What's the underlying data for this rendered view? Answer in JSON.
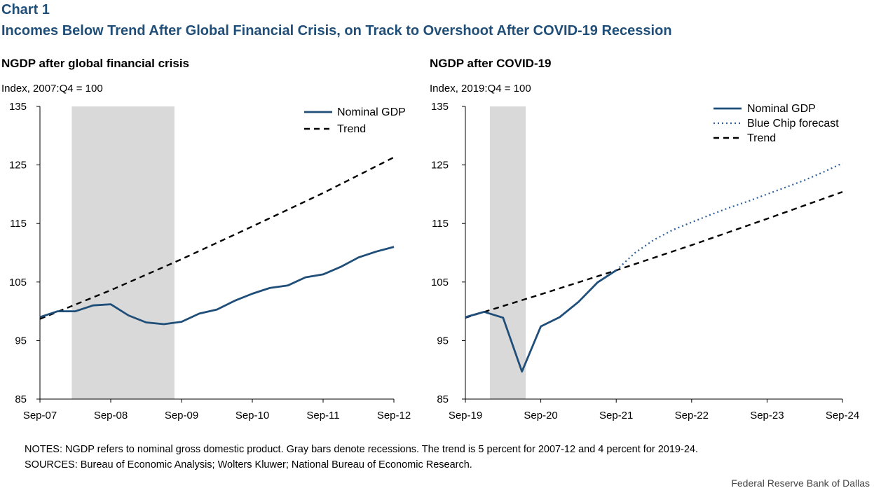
{
  "header": {
    "label": "Chart 1",
    "title": "Incomes Below Trend After Global Financial Crisis, on Track to Overshoot After COVID-19 Recession"
  },
  "colors": {
    "series": "#1f4e79",
    "forecast": "#2e5f9a",
    "trend": "#000000",
    "recession": "#d9d9d9"
  },
  "chart_data": [
    {
      "type": "line",
      "title": "NGDP after global financial crisis",
      "ylabel": "Index, 2007:Q4 = 100",
      "ylim": [
        85,
        135
      ],
      "yticks": [
        85,
        95,
        105,
        115,
        125,
        135
      ],
      "xlim": [
        0,
        20
      ],
      "xticks": [
        {
          "q": 0,
          "label": "Sep-07"
        },
        {
          "q": 4,
          "label": "Sep-08"
        },
        {
          "q": 8,
          "label": "Sep-09"
        },
        {
          "q": 12,
          "label": "Sep-10"
        },
        {
          "q": 16,
          "label": "Sep-11"
        },
        {
          "q": 20,
          "label": "Sep-12"
        }
      ],
      "recession": [
        1.8,
        7.6
      ],
      "legend_position": "top-right",
      "series": [
        {
          "name": "Nominal GDP",
          "style": "solid",
          "x": [
            0,
            1,
            2,
            3,
            4,
            5,
            6,
            7,
            8,
            9,
            10,
            11,
            12,
            13,
            14,
            15,
            16,
            17,
            18,
            19,
            20
          ],
          "values": [
            99.0,
            100.0,
            100.0,
            101.0,
            101.2,
            99.3,
            98.1,
            97.8,
            98.2,
            99.6,
            100.3,
            101.8,
            103.0,
            104.0,
            104.4,
            105.8,
            106.3,
            107.6,
            109.2,
            110.2,
            111.0
          ]
        },
        {
          "name": "Trend",
          "style": "dashed",
          "x": [
            0,
            4,
            8,
            12,
            16,
            20
          ],
          "values": [
            98.7,
            103.6,
            108.9,
            114.5,
            120.2,
            126.3
          ]
        }
      ]
    },
    {
      "type": "line",
      "title": "NGDP after COVID-19",
      "ylabel": "Index, 2019:Q4 = 100",
      "ylim": [
        85,
        135
      ],
      "yticks": [
        85,
        95,
        105,
        115,
        125,
        135
      ],
      "xlim": [
        0,
        20
      ],
      "xticks": [
        {
          "q": 0,
          "label": "Sep-19"
        },
        {
          "q": 4,
          "label": "Sep-20"
        },
        {
          "q": 8,
          "label": "Sep-21"
        },
        {
          "q": 12,
          "label": "Sep-22"
        },
        {
          "q": 16,
          "label": "Sep-23"
        },
        {
          "q": 20,
          "label": "Sep-24"
        }
      ],
      "recession": [
        1.3,
        3.2
      ],
      "legend_position": "top-right",
      "series": [
        {
          "name": "Nominal GDP",
          "style": "solid",
          "x": [
            0,
            1,
            2,
            3,
            4,
            5,
            6,
            7,
            8
          ],
          "values": [
            99.0,
            99.9,
            98.9,
            89.7,
            97.4,
            99.0,
            101.6,
            104.9,
            107.0
          ]
        },
        {
          "name": "Blue Chip forecast",
          "style": "dotted",
          "x": [
            8,
            9,
            10,
            11,
            12,
            13,
            14,
            15,
            16,
            17,
            18,
            19,
            20
          ],
          "values": [
            107.0,
            110.0,
            112.2,
            113.9,
            115.2,
            116.5,
            117.7,
            118.8,
            120.0,
            121.2,
            122.4,
            123.8,
            125.3
          ]
        },
        {
          "name": "Trend",
          "style": "dashed",
          "x": [
            0,
            4,
            8,
            12,
            16,
            20
          ],
          "values": [
            98.9,
            102.9,
            107.0,
            111.3,
            115.8,
            120.4
          ]
        }
      ]
    }
  ],
  "notes": {
    "line1": "NOTES: NGDP refers to nominal gross domestic product. Gray bars denote recessions. The trend is 5 percent for 2007-12 and 4 percent for 2019-24.",
    "line2": "SOURCES: Bureau of Economic Analysis; Wolters Kluwer; National Bureau of Economic Research."
  },
  "credit": "Federal Reserve Bank of Dallas"
}
